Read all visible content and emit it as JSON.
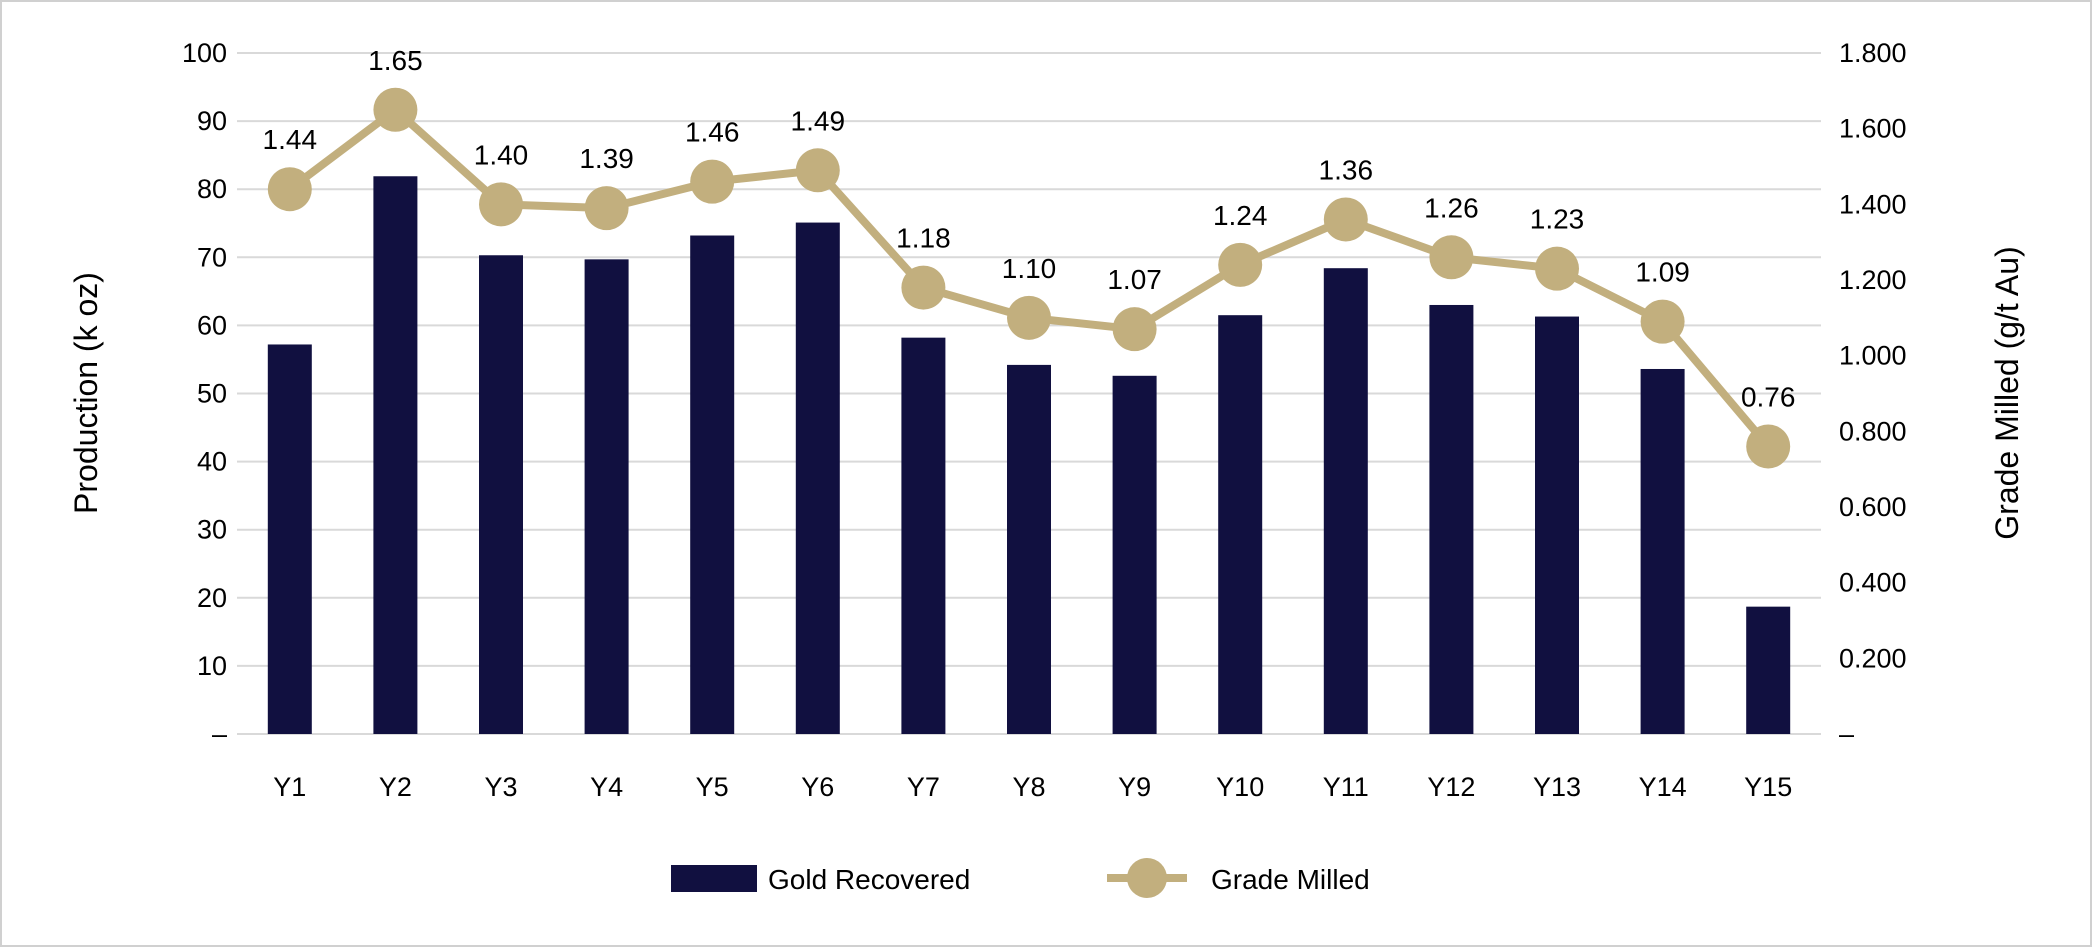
{
  "chart_data": {
    "type": "bar+line",
    "categories": [
      "Y1",
      "Y2",
      "Y3",
      "Y4",
      "Y5",
      "Y6",
      "Y7",
      "Y8",
      "Y9",
      "Y10",
      "Y11",
      "Y12",
      "Y13",
      "Y14",
      "Y15"
    ],
    "series": [
      {
        "name": "Gold Recovered",
        "type": "bar",
        "axis": "left",
        "color": "#111040",
        "values": [
          57.2,
          81.9,
          70.3,
          69.7,
          73.2,
          75.1,
          58.2,
          54.2,
          52.6,
          61.5,
          68.4,
          63.0,
          61.3,
          53.6,
          18.7
        ]
      },
      {
        "name": "Grade Milled",
        "type": "line",
        "axis": "right",
        "color": "#C2AF7E",
        "values": [
          1.44,
          1.65,
          1.4,
          1.39,
          1.46,
          1.49,
          1.18,
          1.1,
          1.07,
          1.24,
          1.36,
          1.26,
          1.23,
          1.09,
          0.76
        ],
        "data_labels": [
          "1.44",
          "1.65",
          "1.40",
          "1.39",
          "1.46",
          "1.49",
          "1.18",
          "1.10",
          "1.07",
          "1.24",
          "1.36",
          "1.26",
          "1.23",
          "1.09",
          "0.76"
        ]
      }
    ],
    "ylabel": "Production (k oz)",
    "y2label": "Grade Milled (g/t Au)",
    "ylim": [
      0,
      100
    ],
    "y2lim": [
      0,
      1.8
    ],
    "yticks": [
      "–",
      "10",
      "20",
      "30",
      "40",
      "50",
      "60",
      "70",
      "80",
      "90",
      "100"
    ],
    "y2ticks": [
      "–",
      "0.200",
      "0.400",
      "0.600",
      "0.800",
      "1.000",
      "1.200",
      "1.400",
      "1.600",
      "1.800"
    ],
    "grid": true,
    "legend": "bottom-center"
  }
}
